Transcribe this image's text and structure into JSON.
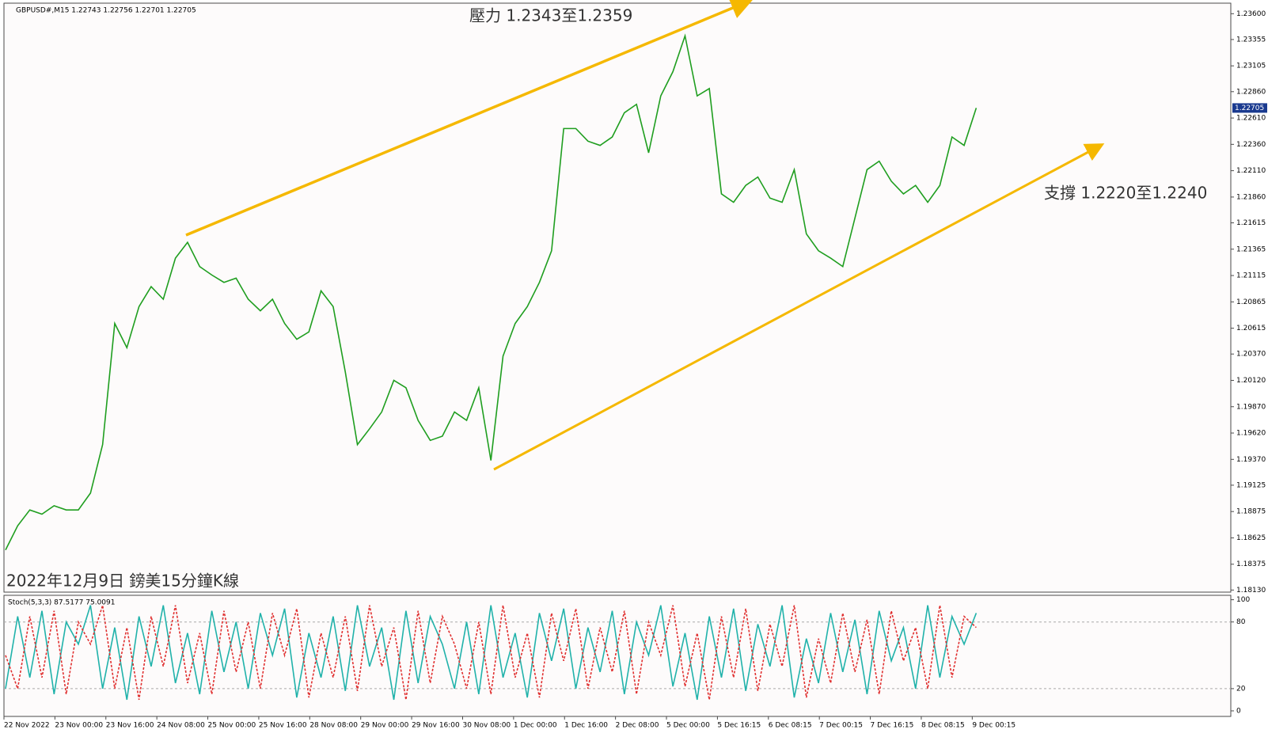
{
  "chart_data": [
    {
      "type": "line",
      "title": "GBPUSD#,M15  1.22743 1.22756 1.22701 1.22705",
      "annotations": [
        "壓力 1.2343至1.2359",
        "支撐 1.2220至1.2240",
        "2022年12月9日 鎊美15分鐘K線"
      ],
      "ylim": [
        1.1811,
        1.237
      ],
      "yticks": [
        {
          "value": 1.236,
          "label": "1.23600"
        },
        {
          "value": 1.23355,
          "label": "1.23355"
        },
        {
          "value": 1.23105,
          "label": "1.23105"
        },
        {
          "value": 1.2286,
          "label": "1.22860"
        },
        {
          "value": 1.2261,
          "label": "1.22610"
        },
        {
          "value": 1.2236,
          "label": "1.22360"
        },
        {
          "value": 1.2211,
          "label": "1.22110"
        },
        {
          "value": 1.2186,
          "label": "1.21860"
        },
        {
          "value": 1.21615,
          "label": "1.21615"
        },
        {
          "value": 1.21365,
          "label": "1.21365"
        },
        {
          "value": 1.21115,
          "label": "1.21115"
        },
        {
          "value": 1.20865,
          "label": "1.20865"
        },
        {
          "value": 1.20615,
          "label": "1.20615"
        },
        {
          "value": 1.2037,
          "label": "1.20370"
        },
        {
          "value": 1.2012,
          "label": "1.20120"
        },
        {
          "value": 1.1987,
          "label": "1.19870"
        },
        {
          "value": 1.1962,
          "label": "1.19620"
        },
        {
          "value": 1.1937,
          "label": "1.19370"
        },
        {
          "value": 1.19125,
          "label": "1.19125"
        },
        {
          "value": 1.18875,
          "label": "1.18875"
        },
        {
          "value": 1.18625,
          "label": "1.18625"
        },
        {
          "value": 1.18375,
          "label": "1.18375"
        },
        {
          "value": 1.1813,
          "label": "1.18130"
        }
      ],
      "current_price": 1.22705,
      "series": [
        {
          "color": "#1f9e1f",
          "values": [
            1.1851,
            1.1874,
            1.1889,
            1.1885,
            1.1893,
            1.1889,
            1.1889,
            1.1905,
            1.1951,
            1.2066,
            1.2043,
            1.2082,
            1.2101,
            1.2089,
            1.2128,
            1.2143,
            1.212,
            1.2112,
            1.2105,
            1.2109,
            1.2089,
            1.2078,
            1.2089,
            1.2066,
            1.2051,
            1.2058,
            1.2097,
            1.2082,
            1.202,
            1.1951,
            1.1966,
            1.1982,
            1.2012,
            1.2005,
            1.1974,
            1.1955,
            1.1959,
            1.1982,
            1.1974,
            1.2005,
            1.1936,
            1.2035,
            1.2066,
            1.2082,
            1.2105,
            1.2135,
            1.2251,
            1.2251,
            1.2239,
            1.2235,
            1.2243,
            1.2266,
            1.2274,
            1.2228,
            1.2282,
            1.2305,
            1.2339,
            1.2282,
            1.2289,
            1.2189,
            1.2181,
            1.2197,
            1.2205,
            1.2185,
            1.2181,
            1.2212,
            1.2151,
            1.2135,
            1.2128,
            1.212,
            1.2166,
            1.2212,
            1.222,
            1.2201,
            1.2189,
            1.2197,
            1.2181,
            1.2197,
            1.2243,
            1.2235,
            1.22705
          ]
        }
      ]
    },
    {
      "type": "line",
      "title": "Stoch(5,3,3) 87.5177 75.0091",
      "ylim": [
        -5,
        104
      ],
      "yticks": [
        0,
        20,
        80,
        100
      ],
      "levels": [
        20,
        80
      ],
      "xtick_labels": [
        "22 Nov 2022",
        "23 Nov 00:00",
        "23 Nov 16:00",
        "24 Nov 08:00",
        "25 Nov 00:00",
        "25 Nov 16:00",
        "28 Nov 08:00",
        "29 Nov 00:00",
        "29 Nov 16:00",
        "30 Nov 08:00",
        "1 Dec 00:00",
        "1 Dec 16:00",
        "2 Dec 08:00",
        "5 Dec 00:00",
        "5 Dec 16:15",
        "6 Dec 08:15",
        "7 Dec 00:15",
        "7 Dec 16:15",
        "8 Dec 08:15",
        "9 Dec 00:15"
      ],
      "series": [
        {
          "color": "#20b2aa",
          "values": [
            20,
            85,
            30,
            90,
            15,
            80,
            60,
            95,
            20,
            75,
            10,
            85,
            40,
            95,
            25,
            70,
            15,
            90,
            35,
            80,
            20,
            88,
            50,
            92,
            12,
            70,
            30,
            85,
            18,
            95,
            40,
            75,
            10,
            90,
            25,
            85,
            60,
            20,
            80,
            15,
            95,
            30,
            70,
            12,
            88,
            45,
            92,
            20,
            75,
            35,
            90,
            15,
            80,
            50,
            95,
            22,
            70,
            10,
            85,
            30,
            92,
            18,
            78,
            40,
            95,
            12,
            65,
            25,
            88,
            35,
            82,
            15,
            90,
            45,
            75,
            20,
            95,
            30,
            85,
            60,
            88
          ]
        },
        {
          "color": "#e03030",
          "dashed": true,
          "values": [
            50,
            20,
            85,
            30,
            90,
            15,
            80,
            60,
            95,
            20,
            75,
            10,
            85,
            40,
            95,
            25,
            70,
            15,
            90,
            35,
            80,
            20,
            88,
            50,
            92,
            12,
            70,
            30,
            85,
            18,
            95,
            40,
            75,
            10,
            90,
            25,
            85,
            60,
            20,
            80,
            15,
            95,
            30,
            70,
            12,
            88,
            45,
            92,
            20,
            75,
            35,
            90,
            15,
            80,
            50,
            95,
            22,
            70,
            10,
            85,
            30,
            92,
            18,
            78,
            40,
            95,
            12,
            65,
            25,
            88,
            35,
            82,
            15,
            90,
            45,
            75,
            20,
            95,
            30,
            85,
            75
          ]
        }
      ]
    }
  ]
}
